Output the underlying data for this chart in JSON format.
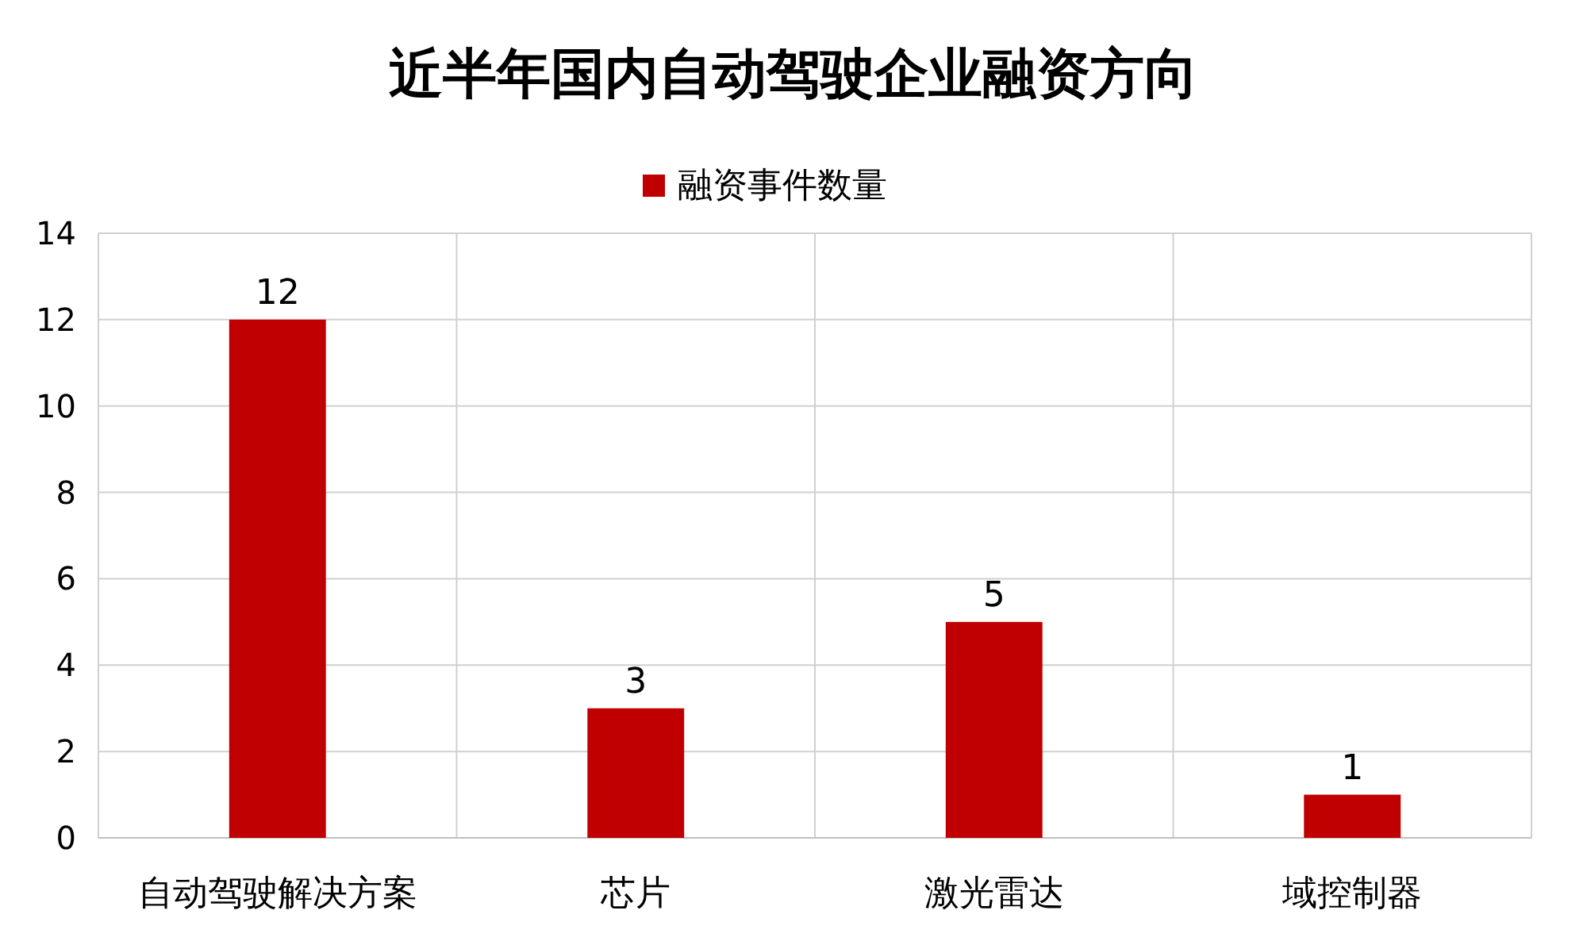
{
  "chart_data": {
    "type": "bar",
    "title": "近半年国内自动驾驶企业融资方向",
    "categories": [
      "自动驾驶解决方案",
      "芯片",
      "激光雷达",
      "域控制器"
    ],
    "series": [
      {
        "name": "融资事件数量",
        "color": "#c00000",
        "values": [
          12,
          3,
          5,
          1
        ]
      }
    ],
    "ylim": [
      0,
      14
    ],
    "yticks": [
      0,
      2,
      4,
      6,
      8,
      10,
      12,
      14
    ],
    "grid": true,
    "legend": "top",
    "data_labels": true
  }
}
